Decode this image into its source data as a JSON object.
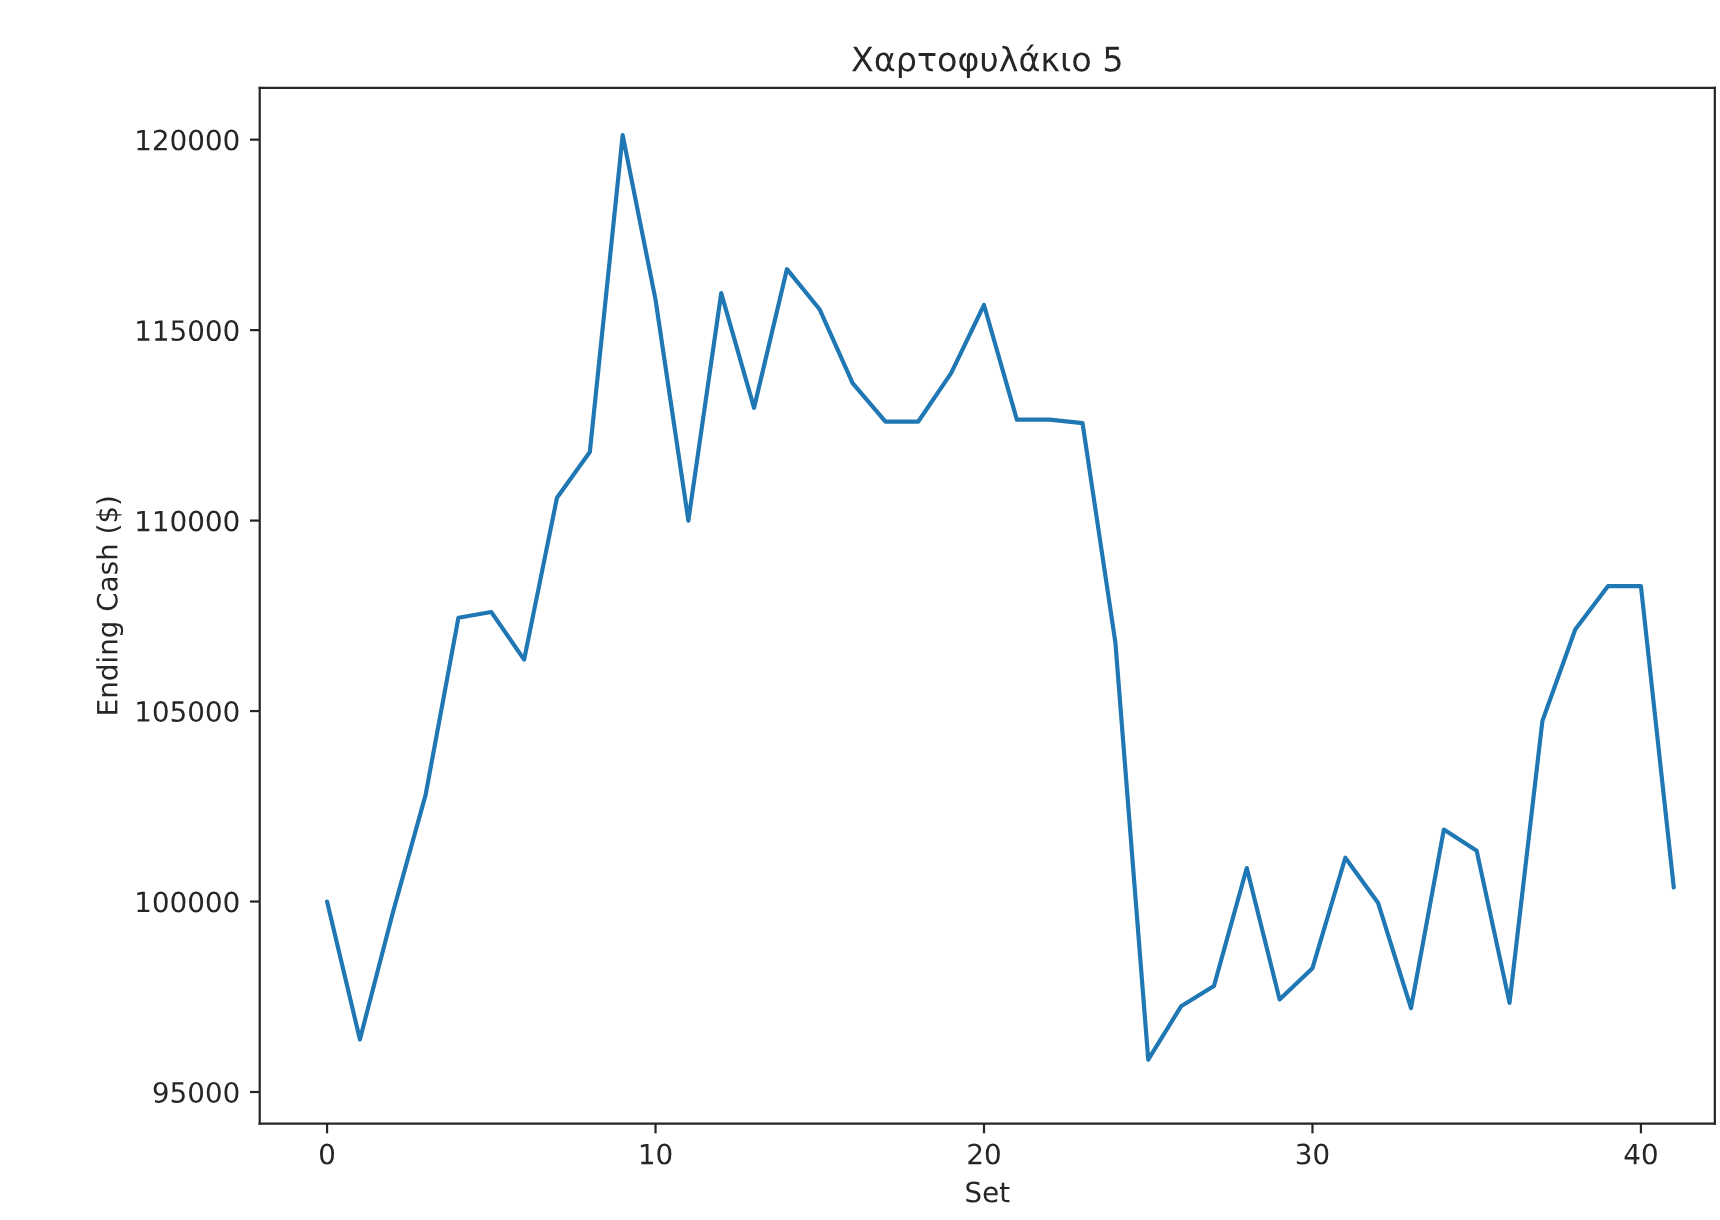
{
  "chart_data": {
    "type": "line",
    "title": "Χαρτοφυλάκιο 5",
    "xlabel": "Set",
    "ylabel": "Ending Cash ($)",
    "x": [
      0,
      1,
      2,
      3,
      4,
      5,
      6,
      7,
      8,
      9,
      10,
      11,
      12,
      13,
      14,
      15,
      16,
      17,
      18,
      19,
      20,
      21,
      22,
      23,
      24,
      25,
      26,
      27,
      28,
      29,
      30,
      31,
      32,
      33,
      34,
      35,
      36,
      37,
      38,
      39,
      40,
      41
    ],
    "series": [
      {
        "color": "#1f77b4",
        "values": [
          100000,
          96380,
          99700,
          102800,
          107450,
          107600,
          106350,
          110600,
          111800,
          120120,
          115800,
          110000,
          115970,
          112960,
          116600,
          115540,
          113610,
          112600,
          112600,
          113870,
          115660,
          112650,
          112650,
          112560,
          106800,
          95850,
          97250,
          97780,
          100880,
          97430,
          98250,
          101150,
          99960,
          97200,
          101890,
          101330,
          97340,
          104740,
          107140,
          108280,
          108280,
          100370
        ]
      }
    ],
    "xlim": [
      -2.05,
      42.25
    ],
    "xticks": [
      0,
      10,
      20,
      30,
      40
    ],
    "ylim": [
      94170,
      121360
    ],
    "yticks": [
      95000,
      100000,
      105000,
      110000,
      115000,
      120000
    ],
    "grid": false,
    "legend": false
  }
}
